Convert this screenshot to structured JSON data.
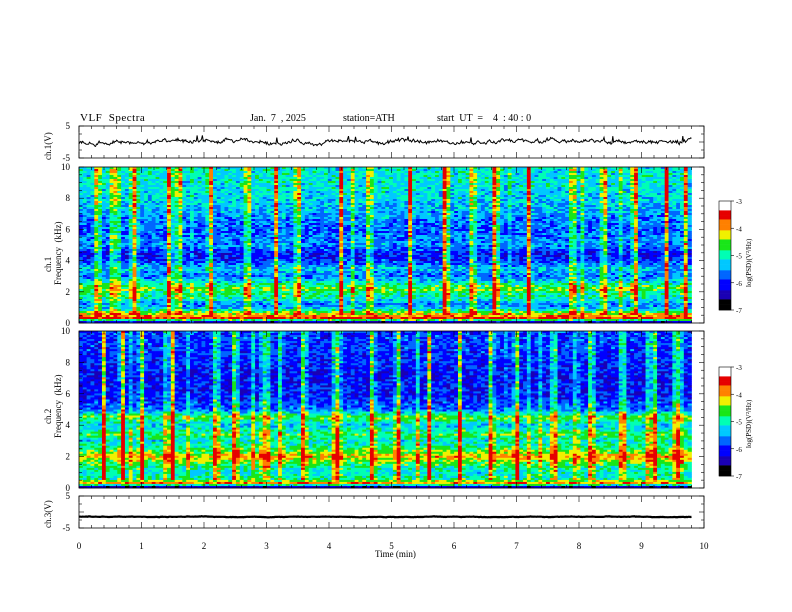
{
  "header": {
    "title": "VLF  Spectra",
    "date": "Jan.  7  , 2025",
    "station": "station=ATH",
    "start": "start  UT  =    4  : 40 : 0"
  },
  "axes": {
    "x_label": "Time  (min)",
    "x_ticks": [
      "0",
      "1",
      "2",
      "3",
      "4",
      "5",
      "6",
      "7",
      "8",
      "9",
      "10"
    ],
    "ch1v_label": "ch.1(V)",
    "ch3v_label": "ch.3(V)",
    "v_ticks": [
      "5",
      "-5"
    ],
    "ch1_label_a": "ch.1",
    "ch1_label_b": "Frequency  (kHz)",
    "ch2_label_a": "ch.2",
    "ch2_label_b": "Frequency  (kHz)",
    "freq_ticks": [
      "10",
      "8",
      "6",
      "4",
      "2",
      "0"
    ],
    "colorbar_label": "log(PSD)(V²/Hz)",
    "colorbar_ticks": [
      "-3",
      "-4",
      "-5",
      "-6",
      "-7"
    ]
  },
  "colors": {
    "colormap": [
      "#000000",
      "#1a00b4",
      "#0000ff",
      "#0066ff",
      "#00c8ff",
      "#00ffb4",
      "#19e619",
      "#f0f000",
      "#ff8000",
      "#e60000",
      "#ffffff"
    ]
  },
  "chart_data": [
    {
      "type": "line",
      "panel": "ch.1(V)",
      "xlabel": "Time  (min)",
      "xlim": [
        0,
        10
      ],
      "ylim": [
        -5,
        5
      ],
      "data_end_min": 9.8,
      "mean_value": 0,
      "fluctuation_amplitude": 1.2
    },
    {
      "type": "heatmap",
      "panel": "ch.1",
      "xlabel": "Time  (min)",
      "ylabel": "Frequency  (kHz)",
      "xlim": [
        0,
        10
      ],
      "ylim": [
        0,
        10
      ],
      "colorbar_label": "log(PSD)(V²/Hz)",
      "zlim": [
        -7,
        -3
      ],
      "profile_freqs_khz": [
        0,
        0.3,
        0.6,
        0.9,
        1.2,
        1.5,
        2.0,
        2.2,
        2.5,
        3.0,
        3.5,
        4.0,
        4.5,
        5.0,
        6.0,
        7.0,
        8.0,
        9.0,
        10.0
      ],
      "profile_log_psd": [
        -7,
        -3.2,
        -4.0,
        -5.2,
        -5.5,
        -5.0,
        -4.6,
        -4.3,
        -4.8,
        -5.6,
        -5.2,
        -5.9,
        -6.0,
        -5.4,
        -5.7,
        -5.4,
        -5.1,
        -5.0,
        -5.0
      ],
      "spike_times_min": [
        0.3,
        0.55,
        0.9,
        1.45,
        1.6,
        2.1,
        2.7,
        3.15,
        3.5,
        4.2,
        4.65,
        5.3,
        5.85,
        6.3,
        6.65,
        7.2,
        7.9,
        8.4,
        8.9,
        9.4,
        9.7
      ]
    },
    {
      "type": "heatmap",
      "panel": "ch.2",
      "xlabel": "Time  (min)",
      "ylabel": "Frequency  (kHz)",
      "xlim": [
        0,
        10
      ],
      "ylim": [
        0,
        10
      ],
      "colorbar_label": "log(PSD)(V²/Hz)",
      "zlim": [
        -7,
        -3
      ],
      "profile_freqs_khz": [
        0,
        0.3,
        0.6,
        1.0,
        1.5,
        2.0,
        2.2,
        2.6,
        3.0,
        3.4,
        4.0,
        4.5,
        5.0,
        6.0,
        7.0,
        8.0,
        9.0,
        10.0
      ],
      "profile_log_psd": [
        -7,
        -3.6,
        -4.8,
        -5.0,
        -4.6,
        -3.8,
        -4.2,
        -4.7,
        -5.0,
        -4.5,
        -5.2,
        -4.4,
        -5.6,
        -6.0,
        -6.1,
        -5.9,
        -5.8,
        -5.8
      ],
      "spike_times_min": [
        0.4,
        0.7,
        1.0,
        1.5,
        2.2,
        2.5,
        3.0,
        3.6,
        4.15,
        4.7,
        5.1,
        5.6,
        6.1,
        6.6,
        7.0,
        7.6,
        8.2,
        8.7,
        9.2,
        9.6
      ]
    },
    {
      "type": "line",
      "panel": "ch.3(V)",
      "xlabel": "Time  (min)",
      "xlim": [
        0,
        10
      ],
      "ylim": [
        -5,
        5
      ],
      "data_end_min": 9.8,
      "mean_value": -1.5,
      "fluctuation_amplitude": 0.15
    }
  ]
}
